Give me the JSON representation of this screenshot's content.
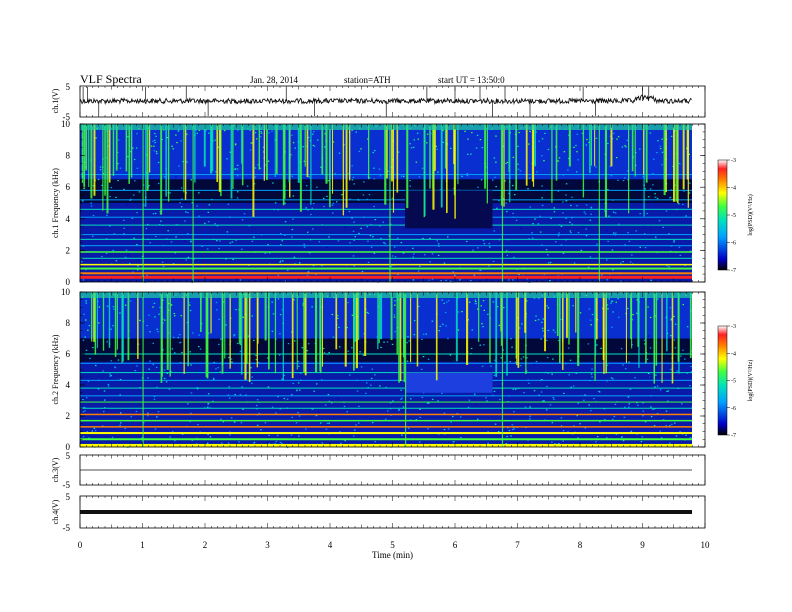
{
  "header": {
    "title": "VLF Spectra",
    "date": "Jan. 28, 2014",
    "station": "station=ATH",
    "start": "start UT = 13:50:0"
  },
  "colors": {
    "trace": "#111111",
    "spectrogram_background": "#0a1aa8",
    "colormap": [
      "#000000",
      "#0000c8",
      "#00a0ff",
      "#00e0c0",
      "#40ff40",
      "#ffff00",
      "#ff8000",
      "#ff2020",
      "#ffffff"
    ]
  },
  "chart_data": [
    {
      "name": "ch.1 waveform",
      "type": "line",
      "ylabel": "ch.1(V)",
      "ylim": [
        -5,
        5
      ],
      "yticks": [
        "5",
        "-5"
      ],
      "xlim": [
        0,
        10
      ],
      "trace_level": 0,
      "note_trace": "noisy baseline near 0 V with sferic spikes; small bump near 9 min"
    },
    {
      "name": "ch.1 spectrogram",
      "type": "heatmap",
      "ylabel": "ch.1 Frequency (kHz)",
      "ylim": [
        0,
        10
      ],
      "yticks": [
        "0",
        "2",
        "4",
        "6",
        "8",
        "10"
      ],
      "xlim": [
        0,
        9.8
      ],
      "colorbar": {
        "label": "log(PSD)(V²/Hz)",
        "range": [
          -7,
          -3
        ],
        "ticks": [
          "-3",
          "-4",
          "-5",
          "-6",
          "-7"
        ]
      }
    },
    {
      "name": "ch.2 spectrogram",
      "type": "heatmap",
      "ylabel": "ch.2 Frequency (kHz)",
      "ylim": [
        0,
        10
      ],
      "yticks": [
        "0",
        "2",
        "4",
        "6",
        "8",
        "10"
      ],
      "xlim": [
        0,
        9.8
      ],
      "colorbar": {
        "label": "log(PSD)(V²/Hz)",
        "range": [
          -7,
          -3
        ],
        "ticks": [
          "-3",
          "-4",
          "-5",
          "-6",
          "-7"
        ]
      }
    },
    {
      "name": "ch.3 waveform",
      "type": "line",
      "ylabel": "ch.3(V)",
      "ylim": [
        -5,
        5
      ],
      "yticks": [
        "5",
        "-5"
      ],
      "trace_level": 0
    },
    {
      "name": "ch.4 waveform",
      "type": "line",
      "ylabel": "ch.4(V)",
      "ylim": [
        -5,
        5
      ],
      "yticks": [
        "5",
        "-5"
      ],
      "trace_level": 0,
      "note_trace": "thick flat trace"
    }
  ],
  "xaxis": {
    "label": "Time (min)",
    "ticks": [
      "0",
      "1",
      "2",
      "3",
      "4",
      "5",
      "6",
      "7",
      "8",
      "9",
      "10"
    ],
    "range": [
      0,
      10
    ]
  }
}
